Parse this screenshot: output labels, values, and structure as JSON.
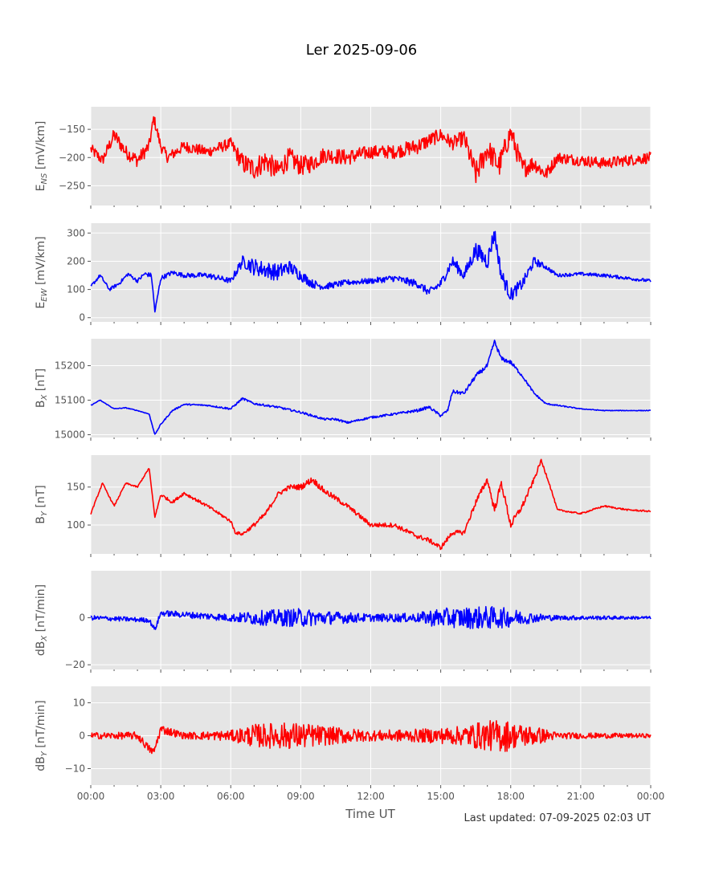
{
  "title": "Ler 2025-09-06",
  "xlabel": "Time UT",
  "footer": "Last updated: 07-09-2025 02:03 UT",
  "chart_data": {
    "type": "line",
    "x_unit": "hours UT",
    "x_ticks": [
      {
        "v": 0,
        "label": "00:00"
      },
      {
        "v": 3,
        "label": "03:00"
      },
      {
        "v": 6,
        "label": "06:00"
      },
      {
        "v": 9,
        "label": "09:00"
      },
      {
        "v": 12,
        "label": "12:00"
      },
      {
        "v": 15,
        "label": "15:00"
      },
      {
        "v": 18,
        "label": "18:00"
      },
      {
        "v": 21,
        "label": "21:00"
      },
      {
        "v": 24,
        "label": "00:00"
      }
    ],
    "xlim": [
      0,
      24
    ],
    "grid": true,
    "panels": [
      {
        "ylabel_main": "E",
        "ylabel_sub": "NS",
        "ylabel_unit": " [mV/km]",
        "color": "#ff0000",
        "ylim": [
          -285,
          -110
        ],
        "yticks": [
          {
            "v": -150,
            "label": "−150"
          },
          {
            "v": -200,
            "label": "−200"
          },
          {
            "v": -250,
            "label": "−250"
          }
        ],
        "x": [
          0,
          0.5,
          1,
          1.5,
          2,
          2.5,
          2.7,
          3,
          3.3,
          4,
          5,
          6,
          6.5,
          7,
          7.5,
          8,
          8.5,
          9,
          9.5,
          10,
          11,
          12,
          13,
          14,
          15,
          15.5,
          16,
          16.5,
          17,
          17.5,
          18,
          18.5,
          19,
          19.5,
          20,
          21,
          22,
          23,
          24
        ],
        "y": [
          -185,
          -205,
          -160,
          -190,
          -205,
          -180,
          -130,
          -180,
          -200,
          -180,
          -190,
          -175,
          -210,
          -220,
          -205,
          -225,
          -200,
          -215,
          -210,
          -195,
          -200,
          -190,
          -190,
          -180,
          -160,
          -175,
          -165,
          -230,
          -185,
          -215,
          -155,
          -220,
          -210,
          -230,
          -200,
          -205,
          -210,
          -205,
          -200
        ],
        "noise": [
          10,
          10,
          12,
          12,
          12,
          12,
          10,
          10,
          10,
          10,
          10,
          10,
          18,
          20,
          20,
          20,
          18,
          18,
          16,
          14,
          14,
          12,
          12,
          14,
          12,
          12,
          14,
          22,
          20,
          22,
          18,
          18,
          14,
          12,
          10,
          10,
          10,
          10,
          10
        ]
      },
      {
        "ylabel_main": "E",
        "ylabel_sub": "EW",
        "ylabel_unit": " [mV/km]",
        "color": "#0000ff",
        "ylim": [
          -15,
          335
        ],
        "yticks": [
          {
            "v": 300,
            "label": "300"
          },
          {
            "v": 200,
            "label": "200"
          },
          {
            "v": 100,
            "label": "100"
          },
          {
            "v": 0,
            "label": "0"
          }
        ],
        "x": [
          0,
          0.4,
          0.8,
          1.2,
          1.6,
          2,
          2.3,
          2.6,
          2.75,
          3,
          3.5,
          4,
          5,
          6,
          6.5,
          7,
          7.5,
          8,
          8.5,
          9,
          9.5,
          10,
          11,
          12,
          13,
          14,
          14.5,
          15,
          15.5,
          16,
          16.5,
          17,
          17.3,
          17.6,
          18,
          18.5,
          19,
          19.5,
          20,
          21,
          22,
          23,
          24
        ],
        "y": [
          110,
          150,
          100,
          120,
          155,
          130,
          155,
          150,
          20,
          140,
          160,
          150,
          150,
          130,
          200,
          180,
          170,
          160,
          180,
          150,
          120,
          110,
          125,
          130,
          140,
          120,
          90,
          120,
          200,
          150,
          240,
          200,
          300,
          150,
          80,
          120,
          200,
          180,
          150,
          155,
          150,
          140,
          130
        ],
        "noise": [
          6,
          6,
          6,
          6,
          6,
          6,
          8,
          8,
          8,
          8,
          8,
          8,
          10,
          10,
          20,
          30,
          30,
          30,
          25,
          20,
          15,
          12,
          10,
          10,
          12,
          14,
          14,
          16,
          20,
          20,
          30,
          30,
          30,
          25,
          25,
          20,
          16,
          8,
          6,
          6,
          6,
          6,
          6
        ]
      },
      {
        "ylabel_main": "B",
        "ylabel_sub": "X",
        "ylabel_unit": " [nT]",
        "color": "#0000ff",
        "ylim": [
          14992,
          15278
        ],
        "yticks": [
          {
            "v": 15200,
            "label": "15200"
          },
          {
            "v": 15100,
            "label": "15100"
          },
          {
            "v": 15000,
            "label": "15000"
          }
        ],
        "x": [
          0,
          0.4,
          1,
          1.5,
          2,
          2.5,
          2.75,
          3,
          3.5,
          4,
          5,
          6,
          6.5,
          7,
          8,
          9,
          10,
          10.5,
          11,
          12,
          13,
          14,
          14.5,
          15,
          15.3,
          15.5,
          16,
          16.5,
          17,
          17.3,
          17.6,
          18,
          18.5,
          19,
          19.5,
          20,
          21,
          22,
          23,
          24
        ],
        "y": [
          15085,
          15100,
          15075,
          15078,
          15070,
          15060,
          15000,
          15030,
          15070,
          15088,
          15085,
          15075,
          15105,
          15090,
          15080,
          15065,
          15045,
          15045,
          15035,
          15050,
          15060,
          15070,
          15080,
          15055,
          15070,
          15125,
          15120,
          15170,
          15200,
          15270,
          15220,
          15210,
          15170,
          15120,
          15090,
          15085,
          15075,
          15070,
          15070,
          15070
        ],
        "noise": [
          1,
          1,
          1,
          1,
          1,
          1,
          1,
          2,
          2,
          2,
          2,
          3,
          3,
          3,
          3,
          3,
          3,
          3,
          3,
          3,
          3,
          4,
          4,
          4,
          4,
          5,
          5,
          6,
          6,
          6,
          6,
          6,
          4,
          3,
          2,
          2,
          1,
          1,
          1,
          1
        ]
      },
      {
        "ylabel_main": "B",
        "ylabel_sub": "Y",
        "ylabel_unit": " [nT]",
        "color": "#ff0000",
        "ylim": [
          62,
          192
        ],
        "yticks": [
          {
            "v": 150,
            "label": "150"
          },
          {
            "v": 100,
            "label": "100"
          }
        ],
        "x": [
          0,
          0.5,
          1,
          1.5,
          2,
          2.5,
          2.75,
          3,
          3.5,
          4,
          5,
          6,
          6.2,
          6.5,
          7,
          7.5,
          8,
          8.5,
          9,
          9.5,
          10,
          11,
          12,
          13,
          14,
          14.5,
          15,
          15.5,
          16,
          16.5,
          17,
          17.3,
          17.6,
          18,
          18.5,
          19,
          19.3,
          19.6,
          20,
          21,
          22,
          23,
          24
        ],
        "y": [
          115,
          155,
          125,
          155,
          150,
          175,
          110,
          140,
          130,
          142,
          125,
          105,
          90,
          88,
          100,
          115,
          140,
          150,
          150,
          160,
          145,
          125,
          100,
          100,
          85,
          80,
          70,
          90,
          90,
          130,
          160,
          120,
          155,
          100,
          125,
          160,
          185,
          160,
          120,
          115,
          125,
          120,
          118
        ],
        "noise": [
          1,
          1,
          1,
          1,
          1,
          1,
          1,
          2,
          2,
          2,
          2,
          2,
          2,
          2,
          3,
          3,
          3,
          3,
          4,
          4,
          4,
          3,
          3,
          3,
          3,
          3,
          3,
          3,
          3,
          4,
          4,
          5,
          5,
          5,
          4,
          3,
          2,
          2,
          1,
          1,
          1,
          1,
          1
        ]
      },
      {
        "ylabel_main": "dB",
        "ylabel_sub": "X",
        "ylabel_unit": " [nT/min]",
        "color": "#0000ff",
        "ylim": [
          -22,
          20
        ],
        "yticks": [
          {
            "v": 0,
            "label": "0"
          },
          {
            "v": -20,
            "label": "−20"
          }
        ],
        "x": [
          0,
          2.5,
          2.75,
          3,
          6,
          7,
          9,
          10,
          12,
          14,
          14.4,
          14.5,
          15,
          16,
          17,
          18,
          19,
          20,
          24
        ],
        "y": [
          0,
          -1,
          -5,
          2,
          0,
          0,
          0,
          0,
          0,
          0,
          0,
          0,
          0,
          0,
          0,
          0,
          0,
          0,
          0
        ],
        "noise": [
          1,
          1,
          1,
          1.2,
          1.6,
          3,
          4,
          3,
          1.6,
          2,
          3,
          3.5,
          4,
          4.5,
          5,
          4,
          2,
          1,
          0.6
        ]
      },
      {
        "ylabel_main": "dB",
        "ylabel_sub": "Y",
        "ylabel_unit": " [nT/min]",
        "color": "#ff0000",
        "ylim": [
          -15,
          15
        ],
        "yticks": [
          {
            "v": 10,
            "label": "10"
          },
          {
            "v": 0,
            "label": "0"
          },
          {
            "v": -10,
            "label": "−10"
          }
        ],
        "x": [
          0,
          1,
          2,
          2.5,
          2.7,
          3,
          4,
          6,
          7,
          8,
          9,
          10,
          12,
          14,
          15,
          16,
          16.5,
          17,
          17.5,
          17.8,
          18,
          19,
          19.5,
          20,
          24
        ],
        "y": [
          0,
          0,
          0,
          -4,
          -5,
          2,
          0,
          0,
          0,
          0,
          0,
          0,
          0,
          0,
          0,
          0,
          0,
          0,
          0,
          0,
          0,
          0,
          0,
          0,
          0
        ],
        "noise": [
          1,
          1,
          1.2,
          1.2,
          1.2,
          1.4,
          1,
          1.6,
          3.5,
          4,
          4,
          3,
          1.6,
          2,
          2.4,
          3,
          4,
          4.5,
          5,
          5,
          4,
          3,
          2,
          1,
          0.6
        ]
      }
    ]
  }
}
